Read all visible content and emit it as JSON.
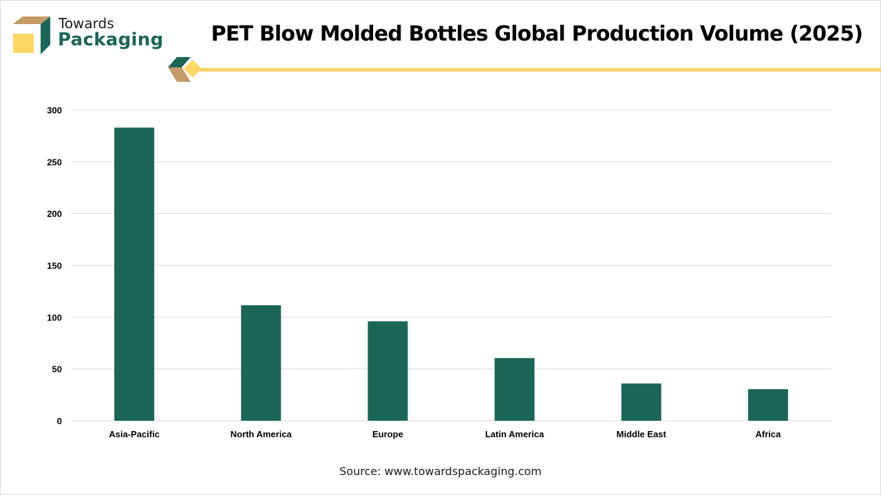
{
  "brand": {
    "name_top": "Towards",
    "name_bottom": "Packaging",
    "colors": {
      "green": "#1b6657",
      "tan": "#c49a66",
      "yellow": "#fdd663"
    }
  },
  "source_text": "Source: www.towardspackaging.com",
  "chart_data": {
    "type": "bar",
    "title": "PET Blow Molded Bottles Global Production Volume (2025)",
    "xlabel": "",
    "ylabel": "",
    "categories": [
      "Asia-Pacific",
      "North America",
      "Europe",
      "Latin America",
      "Middle East",
      "Africa"
    ],
    "values": [
      283,
      111.5,
      96,
      60.5,
      36,
      30.5
    ],
    "ylim": [
      0,
      300
    ],
    "yticks": [
      0,
      50,
      100,
      150,
      200,
      250,
      300
    ],
    "grid": true,
    "legend": "none",
    "bar_color": "#1b6657",
    "grid_color": "#d9d9d9"
  }
}
